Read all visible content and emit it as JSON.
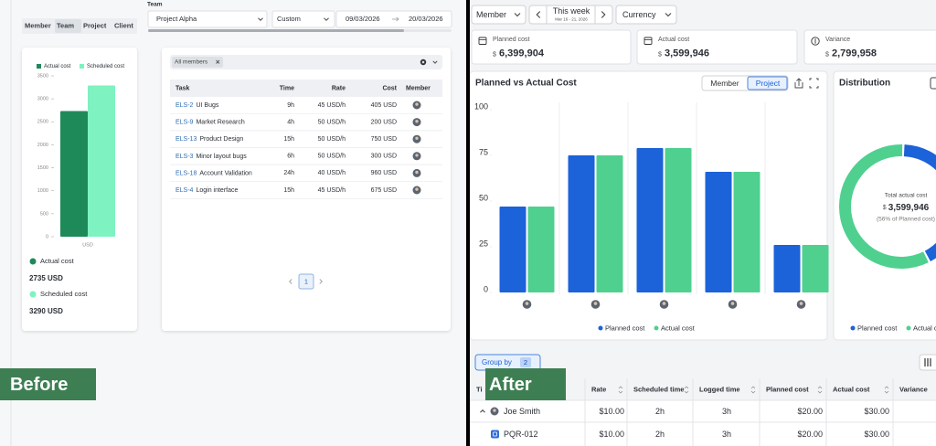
{
  "before": {
    "label": "Before",
    "tabs": [
      "Member",
      "Team",
      "Project",
      "Client"
    ],
    "team_label": "Team",
    "project": "Project Alpha",
    "range": "Custom",
    "date_from": "09/03/2026",
    "date_to": "20/03/2026",
    "chart": {
      "type": "bar",
      "categories": [
        "USD"
      ],
      "series": [
        {
          "name": "Actual cost",
          "color": "#1e8a5a",
          "values": [
            2735
          ]
        },
        {
          "name": "Scheduled cost",
          "color": "#7ef2c0",
          "values": [
            3290
          ]
        }
      ],
      "ylim": [
        0,
        3500
      ],
      "yticks": [
        0,
        500,
        1000,
        1500,
        2000,
        2500,
        3000,
        3500
      ]
    },
    "summary": [
      {
        "label": "Actual cost",
        "value": "2735 USD"
      },
      {
        "label": "Scheduled cost",
        "value": "3290 USD"
      }
    ],
    "filter": "All members",
    "table": {
      "columns": [
        "Task",
        "Time",
        "Rate",
        "Cost",
        "Member"
      ],
      "rows": [
        {
          "id": "ELS-2",
          "task": "UI Bugs",
          "time": "9h",
          "rate": "45 USD/h",
          "cost": "405 USD"
        },
        {
          "id": "ELS-9",
          "task": "Market Research",
          "time": "4h",
          "rate": "50 USD/h",
          "cost": "200 USD"
        },
        {
          "id": "ELS-13",
          "task": "Product Design",
          "time": "15h",
          "rate": "50 USD/h",
          "cost": "750 USD"
        },
        {
          "id": "ELS-3",
          "task": "Minor layout bugs",
          "time": "6h",
          "rate": "50 USD/h",
          "cost": "300 USD"
        },
        {
          "id": "ELS-18",
          "task": "Account Validation",
          "time": "24h",
          "rate": "40 USD/h",
          "cost": "960 USD"
        },
        {
          "id": "ELS-4",
          "task": "Login interface",
          "time": "15h",
          "rate": "45 USD/h",
          "cost": "675 USD"
        }
      ]
    },
    "page": "1"
  },
  "after": {
    "label": "After",
    "member": "Member",
    "period": "This week",
    "period_dates": "Mar 16 - 21, 2026",
    "currency": "Currency",
    "kpis": [
      {
        "label": "Planned cost",
        "symbol": "$",
        "value": "6,399,904"
      },
      {
        "label": "Actual cost",
        "symbol": "$",
        "value": "3,599,946"
      },
      {
        "label": "Variance",
        "symbol": "$",
        "value": "2,799,958"
      }
    ],
    "chart": {
      "type": "bar",
      "title": "Planned vs Actual Cost",
      "toggle": [
        "Member",
        "Project"
      ],
      "categories": [
        null,
        null,
        null,
        null,
        null
      ],
      "series": [
        {
          "name": "Planned cost",
          "color": "#1c62d8",
          "values": [
            47,
            75,
            79,
            66,
            26
          ]
        },
        {
          "name": "Actual cost",
          "color": "#4fd08f",
          "values": [
            47,
            75,
            79,
            66,
            26
          ]
        }
      ],
      "ylim": [
        0,
        100
      ],
      "yticks": [
        0,
        25,
        50,
        75,
        100
      ]
    },
    "distribution": {
      "title": "Distribution",
      "center_label": "Total actual cost",
      "symbol": "$",
      "center_value": "3,599,946",
      "center_note": "(56% of Planned cost)",
      "legend": [
        "Planned cost",
        "Actual cost"
      ]
    },
    "group_by": "Group by",
    "group_count": "2",
    "table": {
      "columns": [
        "Ti",
        "Rate",
        "Scheduled time",
        "Logged time",
        "Planned cost",
        "Actual cost",
        "Variance"
      ],
      "rows": [
        {
          "title": "Joe Smith",
          "rate": "$10.00",
          "scheduled": "2h",
          "logged": "3h",
          "planned": "$20.00",
          "actual": "$30.00"
        },
        {
          "title": "PQR-012",
          "rate": "$10.00",
          "scheduled": "2h",
          "logged": "3h",
          "planned": "$20.00",
          "actual": "$30.00"
        }
      ]
    }
  }
}
